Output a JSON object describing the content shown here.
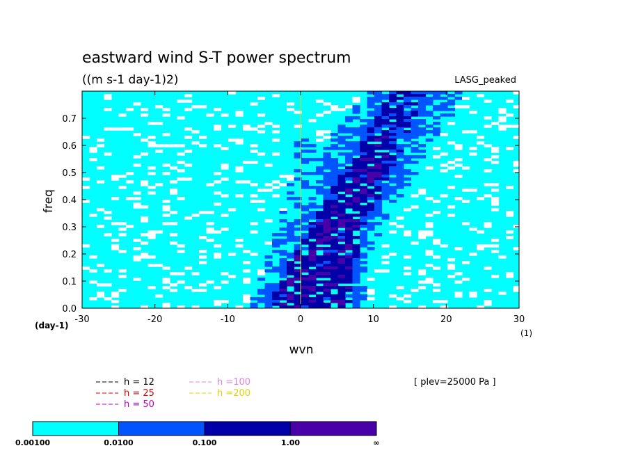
{
  "chart_data": {
    "type": "heatmap",
    "title": "eastward wind S-T power spectrum",
    "subtitle": "((m s-1 day-1)2)",
    "model_label": "LASG_peaked",
    "xlabel": "wvn",
    "ylabel": "freq",
    "xlim": [
      -30,
      30
    ],
    "ylim": [
      0,
      0.8
    ],
    "x_ticks": [
      "-30",
      "-20",
      "-10",
      "0",
      "10",
      "20",
      "30"
    ],
    "y_ticks": [
      "0.0",
      "0.1",
      "0.2",
      "0.3",
      "0.4",
      "0.5",
      "0.6",
      "0.7"
    ],
    "x_unit": "(1)",
    "y_unit": "(day-1)",
    "level_annotation": "[ plev=25000 Pa ]",
    "dispersion_curves": [
      {
        "label": "h = 12",
        "color": "#000000",
        "h": 12
      },
      {
        "label": "h = 25",
        "color": "#e00000",
        "h": 25
      },
      {
        "label": "h = 50",
        "color": "#c000c0",
        "h": 50
      },
      {
        "label": "h =100",
        "color": "#e080e0",
        "h": 100
      },
      {
        "label": "h =200",
        "color": "#e8d000",
        "h": 200
      }
    ],
    "colorbar": {
      "colors": [
        "#00ffff",
        "#0055ff",
        "#0000a8",
        "#4a00a8"
      ],
      "labels": [
        "0.00100",
        "0.0100",
        "0.100",
        "1.00",
        "∞"
      ]
    }
  }
}
